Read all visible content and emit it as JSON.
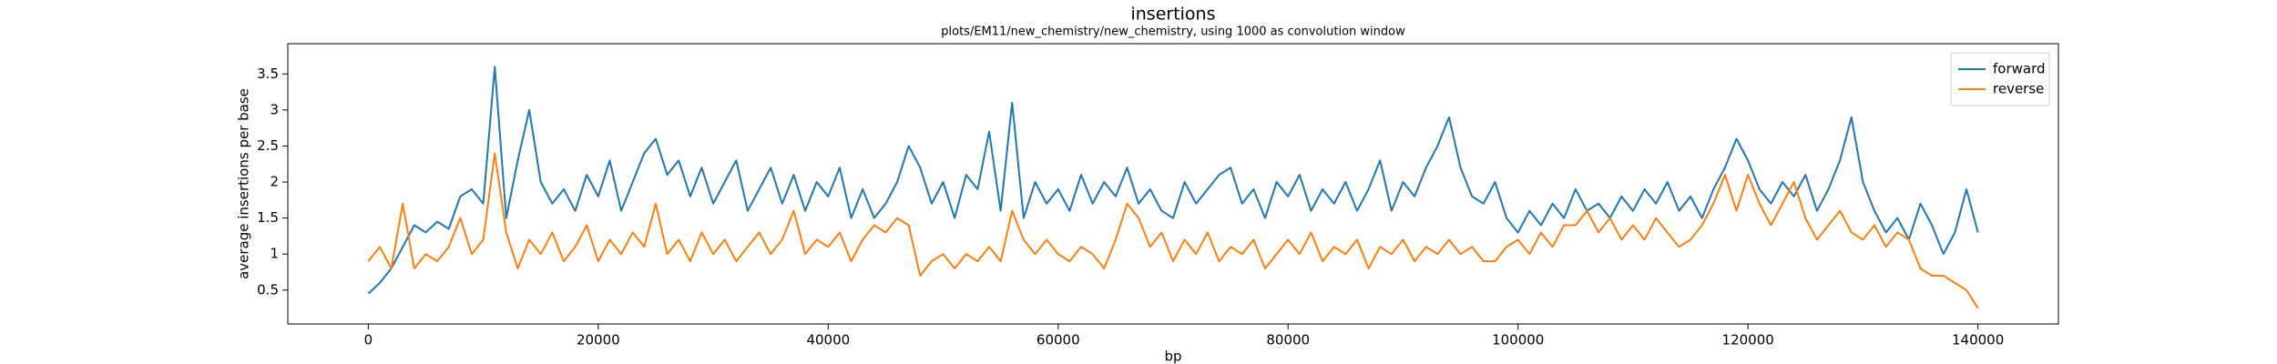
{
  "chart_data": {
    "type": "line",
    "title": "insertions",
    "subtitle": "plots/EM11/new_chemistry/new_chemistry, using 1000 as convolution window",
    "x_label": "bp",
    "y_label": "average insertions per base",
    "x": [
      0,
      1000,
      2000,
      3000,
      4000,
      5000,
      6000,
      7000,
      8000,
      9000,
      10000,
      11000,
      12000,
      13000,
      14000,
      15000,
      16000,
      17000,
      18000,
      19000,
      20000,
      21000,
      22000,
      23000,
      24000,
      25000,
      26000,
      27000,
      28000,
      29000,
      30000,
      31000,
      32000,
      33000,
      34000,
      35000,
      36000,
      37000,
      38000,
      39000,
      40000,
      41000,
      42000,
      43000,
      44000,
      45000,
      46000,
      47000,
      48000,
      49000,
      50000,
      51000,
      52000,
      53000,
      54000,
      55000,
      56000,
      57000,
      58000,
      59000,
      60000,
      61000,
      62000,
      63000,
      64000,
      65000,
      66000,
      67000,
      68000,
      69000,
      70000,
      71000,
      72000,
      73000,
      74000,
      75000,
      76000,
      77000,
      78000,
      79000,
      80000,
      81000,
      82000,
      83000,
      84000,
      85000,
      86000,
      87000,
      88000,
      89000,
      90000,
      91000,
      92000,
      93000,
      94000,
      95000,
      96000,
      97000,
      98000,
      99000,
      100000,
      101000,
      102000,
      103000,
      104000,
      105000,
      106000,
      107000,
      108000,
      109000,
      110000,
      111000,
      112000,
      113000,
      114000,
      115000,
      116000,
      117000,
      118000,
      119000,
      120000,
      121000,
      122000,
      123000,
      124000,
      125000,
      126000,
      127000,
      128000,
      129000,
      130000,
      131000,
      132000,
      133000,
      134000,
      135000,
      136000,
      137000,
      138000,
      139000,
      140000
    ],
    "series": [
      {
        "name": "forward",
        "color": "#1f77b4",
        "values": [
          0.45,
          0.6,
          0.8,
          1.1,
          1.4,
          1.3,
          1.45,
          1.35,
          1.8,
          1.9,
          1.7,
          3.6,
          1.5,
          2.3,
          3.0,
          2.0,
          1.7,
          1.9,
          1.6,
          2.1,
          1.8,
          2.3,
          1.6,
          2.0,
          2.4,
          2.6,
          2.1,
          2.3,
          1.8,
          2.2,
          1.7,
          2.0,
          2.3,
          1.6,
          1.9,
          2.2,
          1.7,
          2.1,
          1.6,
          2.0,
          1.8,
          2.2,
          1.5,
          1.9,
          1.5,
          1.7,
          2.0,
          2.5,
          2.2,
          1.7,
          2.0,
          1.5,
          2.1,
          1.9,
          2.7,
          1.6,
          3.1,
          1.5,
          2.0,
          1.7,
          1.9,
          1.6,
          2.1,
          1.7,
          2.0,
          1.8,
          2.2,
          1.7,
          1.9,
          1.6,
          1.5,
          2.0,
          1.7,
          1.9,
          2.1,
          2.2,
          1.7,
          1.9,
          1.5,
          2.0,
          1.8,
          2.1,
          1.6,
          1.9,
          1.7,
          2.0,
          1.6,
          1.9,
          2.3,
          1.6,
          2.0,
          1.8,
          2.2,
          2.5,
          2.9,
          2.2,
          1.8,
          1.7,
          2.0,
          1.5,
          1.3,
          1.6,
          1.4,
          1.7,
          1.5,
          1.9,
          1.6,
          1.7,
          1.5,
          1.8,
          1.6,
          1.9,
          1.7,
          2.0,
          1.6,
          1.8,
          1.5,
          1.9,
          2.2,
          2.6,
          2.3,
          1.9,
          1.7,
          2.0,
          1.8,
          2.1,
          1.6,
          1.9,
          2.3,
          2.9,
          2.0,
          1.6,
          1.3,
          1.5,
          1.2,
          1.7,
          1.4,
          1.0,
          1.3,
          1.9,
          1.3
        ]
      },
      {
        "name": "reverse",
        "color": "#ff7f0e",
        "values": [
          0.9,
          1.1,
          0.8,
          1.7,
          0.8,
          1.0,
          0.9,
          1.1,
          1.5,
          1.0,
          1.2,
          2.4,
          1.3,
          0.8,
          1.2,
          1.0,
          1.3,
          0.9,
          1.1,
          1.4,
          0.9,
          1.2,
          1.0,
          1.3,
          1.1,
          1.7,
          1.0,
          1.2,
          0.9,
          1.3,
          1.0,
          1.2,
          0.9,
          1.1,
          1.3,
          1.0,
          1.2,
          1.6,
          1.0,
          1.2,
          1.1,
          1.3,
          0.9,
          1.2,
          1.4,
          1.3,
          1.5,
          1.4,
          0.7,
          0.9,
          1.0,
          0.8,
          1.0,
          0.9,
          1.1,
          0.9,
          1.6,
          1.2,
          1.0,
          1.2,
          1.0,
          0.9,
          1.1,
          1.0,
          0.8,
          1.2,
          1.7,
          1.5,
          1.1,
          1.3,
          0.9,
          1.2,
          1.0,
          1.3,
          0.9,
          1.1,
          1.0,
          1.2,
          0.8,
          1.0,
          1.2,
          1.0,
          1.3,
          0.9,
          1.1,
          1.0,
          1.2,
          0.8,
          1.1,
          1.0,
          1.2,
          0.9,
          1.1,
          1.0,
          1.2,
          1.0,
          1.1,
          0.9,
          0.9,
          1.1,
          1.2,
          1.0,
          1.3,
          1.1,
          1.4,
          1.4,
          1.6,
          1.3,
          1.5,
          1.2,
          1.4,
          1.2,
          1.5,
          1.3,
          1.1,
          1.2,
          1.4,
          1.7,
          2.1,
          1.6,
          2.1,
          1.7,
          1.4,
          1.7,
          2.0,
          1.5,
          1.2,
          1.4,
          1.6,
          1.3,
          1.2,
          1.4,
          1.1,
          1.3,
          1.2,
          0.8,
          0.7,
          0.7,
          0.6,
          0.5,
          0.25
        ]
      }
    ],
    "xlim": [
      -7000,
      147000
    ],
    "ylim": [
      0.03,
      3.92
    ],
    "xticks": [
      0,
      20000,
      40000,
      60000,
      80000,
      100000,
      120000,
      140000
    ],
    "yticks": [
      0.5,
      1.0,
      1.5,
      2.0,
      2.5,
      3.0,
      3.5
    ],
    "legend": "upper right"
  }
}
